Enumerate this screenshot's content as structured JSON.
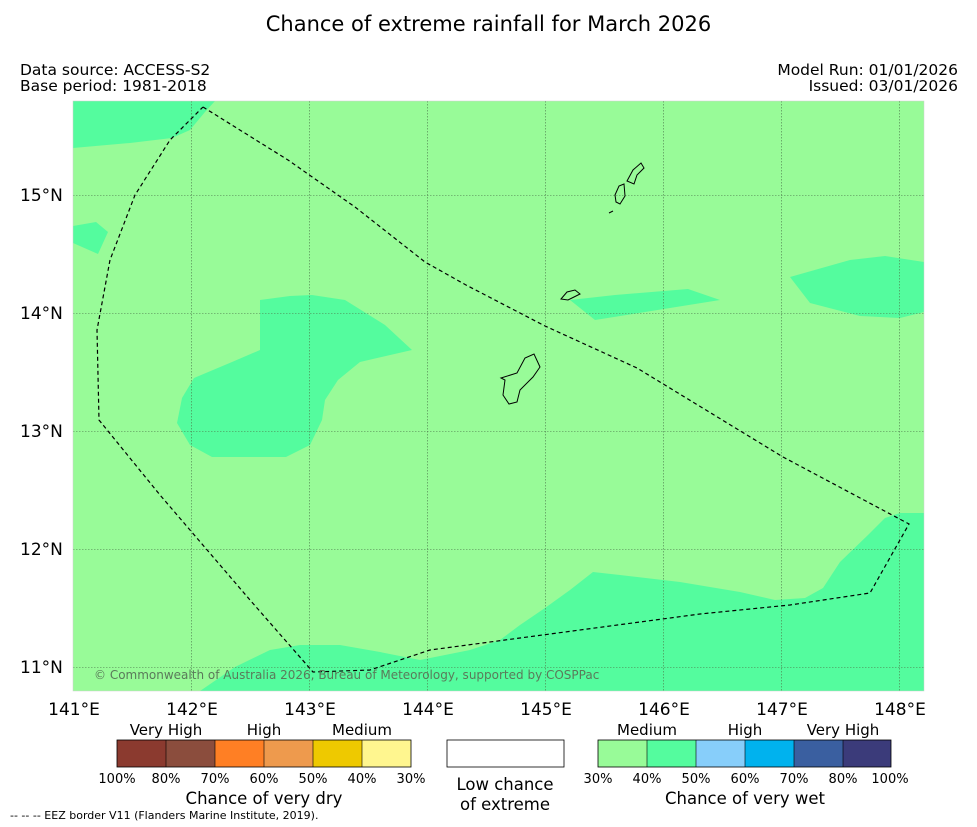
{
  "title": "Chance of extreme rainfall for March 2026",
  "meta": {
    "data_source": "Data source: ACCESS-S2",
    "base_period": "Base period: 1981-2018",
    "model_run": "Model Run: 01/01/2026",
    "issued": "Issued: 03/01/2026"
  },
  "map": {
    "copyright": "© Commonwealth of Australia 2026, Bureau of Meteorology, supported by COSPPac",
    "lat_labels": [
      "15°N",
      "14°N",
      "13°N",
      "12°N",
      "11°N"
    ],
    "lon_labels": [
      "141°E",
      "142°E",
      "143°E",
      "144°E",
      "145°E",
      "146°E",
      "147°E",
      "148°E"
    ],
    "background_color": "#98fb98",
    "patch_color": "#54fc9e"
  },
  "legend": {
    "dry": {
      "category_labels": [
        "Very High",
        "High",
        "Medium"
      ],
      "colors": [
        "#8b3a2f",
        "#8b4d3d",
        "#ff7f24",
        "#ee9a4d",
        "#eec900",
        "#fff68f"
      ],
      "ticks": [
        "100%",
        "80%",
        "70%",
        "60%",
        "50%",
        "40%",
        "30%"
      ],
      "title": "Chance of very dry"
    },
    "low": {
      "title_line1": "Low chance",
      "title_line2": "of extreme"
    },
    "wet": {
      "category_labels": [
        "Medium",
        "High",
        "Very High"
      ],
      "colors": [
        "#98fb98",
        "#54fc9e",
        "#87cefa",
        "#00b2ee",
        "#3a5fa0",
        "#3b3b7a"
      ],
      "ticks": [
        "30%",
        "40%",
        "50%",
        "60%",
        "70%",
        "80%",
        "100%"
      ],
      "title": "Chance of very wet"
    }
  },
  "footnote": "--  --  -- EEZ border V11 (Flanders Marine Institute, 2019)."
}
